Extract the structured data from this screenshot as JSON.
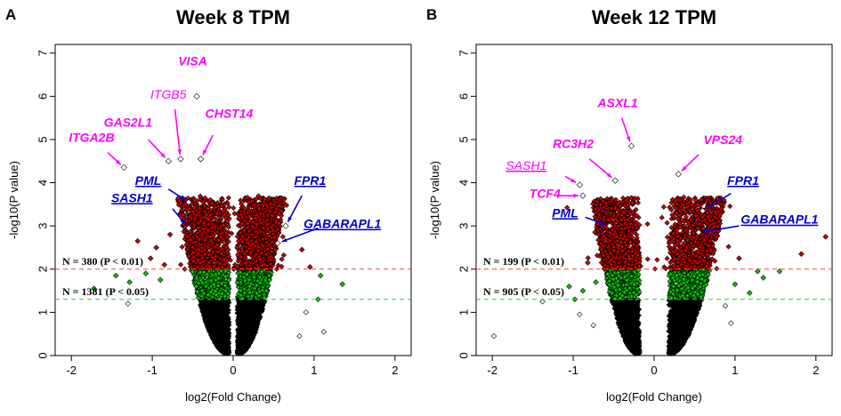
{
  "chart_data": [
    {
      "type": "scatter",
      "panel_letter": "A",
      "title": "Week 8 TPM",
      "xlabel": "log2(Fold Change)",
      "ylabel": "-log10(P value)",
      "xlim": [
        -2.2,
        2.2
      ],
      "ylim": [
        0,
        7.2
      ],
      "xticks": [
        -2,
        -1,
        0,
        1,
        2
      ],
      "yticks": [
        0,
        1,
        2,
        3,
        4,
        5,
        6,
        7
      ],
      "thresholds": [
        {
          "y": 2.0,
          "color": "#ff4040",
          "label": "N = 380 (P < 0.01)"
        },
        {
          "y": 1.3,
          "color": "#33cc33",
          "label": "N = 1381 (P < 0.05)"
        }
      ],
      "colors": {
        "high": "#cc0000",
        "mid": "#00cc00",
        "low": "#000000",
        "magenta": "#ff00ff",
        "blue": "#0000cc"
      },
      "cloud": {
        "x_gap": [
          -0.05,
          0.05
        ],
        "left_spread": 0.55,
        "right_spread": 0.5,
        "top_x": [
          -0.32,
          0.28
        ]
      },
      "outliers": [
        {
          "x": -1.72,
          "y": 1.55
        },
        {
          "x": -1.45,
          "y": 1.85
        },
        {
          "x": -1.28,
          "y": 1.7
        },
        {
          "x": -1.08,
          "y": 1.9
        },
        {
          "x": -0.95,
          "y": 2.5
        },
        {
          "x": -0.85,
          "y": 2.1
        },
        {
          "x": -1.02,
          "y": 2.25
        },
        {
          "x": -0.78,
          "y": 2.8
        },
        {
          "x": -1.18,
          "y": 2.65
        },
        {
          "x": -0.9,
          "y": 1.75
        },
        {
          "x": 0.95,
          "y": 2.05
        },
        {
          "x": 1.08,
          "y": 1.85
        },
        {
          "x": 1.35,
          "y": 1.65
        },
        {
          "x": 0.85,
          "y": 2.45
        },
        {
          "x": 1.12,
          "y": 0.55
        },
        {
          "x": 0.82,
          "y": 0.45
        },
        {
          "x": 1.05,
          "y": 1.3
        },
        {
          "x": -1.3,
          "y": 1.2
        },
        {
          "x": 0.9,
          "y": 1.0
        }
      ],
      "genes": [
        {
          "name": "VISA",
          "x": -0.45,
          "y": 6.0,
          "color": "magenta",
          "lx": -0.5,
          "ly": 6.72,
          "underline": false,
          "thin": false
        },
        {
          "name": "ITGB5",
          "x": -0.65,
          "y": 4.55,
          "color": "magenta",
          "lx": -0.8,
          "ly": 5.95,
          "underline": false,
          "thin": true,
          "ax": -0.72,
          "ay": 5.7
        },
        {
          "name": "GAS2L1",
          "x": -0.8,
          "y": 4.5,
          "color": "magenta",
          "lx": -1.3,
          "ly": 5.3,
          "underline": false,
          "thin": false,
          "ax": -1.05,
          "ay": 5.0
        },
        {
          "name": "CHST14",
          "x": -0.4,
          "y": 4.55,
          "color": "magenta",
          "lx": -0.05,
          "ly": 5.5,
          "underline": false,
          "thin": false,
          "ax": -0.25,
          "ay": 5.1
        },
        {
          "name": "ITGA2B",
          "x": -1.35,
          "y": 4.35,
          "color": "magenta",
          "lx": -1.75,
          "ly": 4.95,
          "underline": false,
          "thin": false,
          "ax": -1.55,
          "ay": 4.7
        },
        {
          "name": "PML",
          "x": -0.55,
          "y": 3.55,
          "color": "blue",
          "lx": -1.05,
          "ly": 3.95,
          "underline": true,
          "thin": false,
          "ax": -0.8,
          "ay": 3.85
        },
        {
          "name": "SASH1",
          "x": -0.55,
          "y": 2.95,
          "color": "blue",
          "lx": -1.25,
          "ly": 3.55,
          "underline": true,
          "thin": false,
          "ax": -0.75,
          "ay": 3.4
        },
        {
          "name": "FPR1",
          "x": 0.65,
          "y": 3.0,
          "color": "blue",
          "lx": 0.95,
          "ly": 3.95,
          "underline": true,
          "thin": false,
          "ax": 0.85,
          "ay": 3.7
        },
        {
          "name": "GABARAPL1",
          "x": 0.55,
          "y": 2.6,
          "color": "blue",
          "lx": 1.35,
          "ly": 2.95,
          "underline": true,
          "thin": false,
          "ax": 1.05,
          "ay": 2.95
        }
      ]
    },
    {
      "type": "scatter",
      "panel_letter": "B",
      "title": "Week 12 TPM",
      "xlabel": "log2(Fold Change)",
      "ylabel": "-log10(P value)",
      "xlim": [
        -2.2,
        2.2
      ],
      "ylim": [
        0,
        7.2
      ],
      "xticks": [
        -2,
        -1,
        0,
        1,
        2
      ],
      "yticks": [
        0,
        1,
        2,
        3,
        4,
        5,
        6,
        7
      ],
      "thresholds": [
        {
          "y": 2.0,
          "color": "#ff4040",
          "label": "N = 199 (P < 0.01)"
        },
        {
          "y": 1.3,
          "color": "#33cc33",
          "label": "N = 905 (P < 0.05)"
        }
      ],
      "colors": {
        "high": "#cc0000",
        "mid": "#00cc00",
        "low": "#000000",
        "magenta": "#ff00ff",
        "blue": "#0000cc"
      },
      "cloud": {
        "x_gap": [
          -0.18,
          0.18
        ],
        "left_spread": 0.5,
        "right_spread": 0.6,
        "top_x": [
          -0.45,
          0.45
        ]
      },
      "outliers": [
        {
          "x": -1.98,
          "y": 0.45
        },
        {
          "x": -1.38,
          "y": 1.25
        },
        {
          "x": -0.98,
          "y": 1.3
        },
        {
          "x": -0.88,
          "y": 1.5
        },
        {
          "x": -0.92,
          "y": 0.95
        },
        {
          "x": -0.72,
          "y": 1.7
        },
        {
          "x": -1.05,
          "y": 1.6
        },
        {
          "x": -0.82,
          "y": 2.15
        },
        {
          "x": -0.75,
          "y": 0.7
        },
        {
          "x": 1.0,
          "y": 1.65
        },
        {
          "x": 1.18,
          "y": 1.45
        },
        {
          "x": 1.35,
          "y": 1.8
        },
        {
          "x": 1.55,
          "y": 1.95
        },
        {
          "x": 1.82,
          "y": 2.35
        },
        {
          "x": 1.28,
          "y": 1.95
        },
        {
          "x": 0.95,
          "y": 0.75
        },
        {
          "x": 2.12,
          "y": 2.75
        },
        {
          "x": 0.88,
          "y": 1.15
        },
        {
          "x": 1.05,
          "y": 2.25
        }
      ],
      "genes": [
        {
          "name": "ASXL1",
          "x": -0.28,
          "y": 4.85,
          "color": "magenta",
          "lx": -0.45,
          "ly": 5.75,
          "underline": false,
          "thin": false,
          "ax": -0.4,
          "ay": 5.5
        },
        {
          "name": "VPS24",
          "x": 0.3,
          "y": 4.2,
          "color": "magenta",
          "lx": 0.85,
          "ly": 4.9,
          "underline": false,
          "thin": false,
          "ax": 0.55,
          "ay": 4.65
        },
        {
          "name": "RC3H2",
          "x": -0.48,
          "y": 4.05,
          "color": "magenta",
          "lx": -1.0,
          "ly": 4.8,
          "underline": false,
          "thin": false,
          "ax": -0.8,
          "ay": 4.55
        },
        {
          "name": "SASH1",
          "x": -0.92,
          "y": 3.95,
          "color": "magenta",
          "lx": -1.58,
          "ly": 4.3,
          "underline": true,
          "thin": true,
          "ax": -1.1,
          "ay": 4.15
        },
        {
          "name": "TCF4",
          "x": -0.88,
          "y": 3.7,
          "color": "magenta",
          "lx": -1.35,
          "ly": 3.65,
          "underline": false,
          "thin": false,
          "ax": -1.2,
          "ay": 3.7
        },
        {
          "name": "PML",
          "x": -0.55,
          "y": 3.0,
          "color": "blue",
          "lx": -1.1,
          "ly": 3.2,
          "underline": true,
          "thin": false,
          "ax": -0.85,
          "ay": 3.2
        },
        {
          "name": "FPR1",
          "x": 0.6,
          "y": 3.35,
          "color": "blue",
          "lx": 1.1,
          "ly": 3.95,
          "underline": true,
          "thin": false,
          "ax": 0.95,
          "ay": 3.75
        },
        {
          "name": "GABARAPL1",
          "x": 0.55,
          "y": 2.85,
          "color": "blue",
          "lx": 1.55,
          "ly": 3.05,
          "underline": true,
          "thin": false,
          "ax": 1.05,
          "ay": 3.0
        }
      ]
    }
  ]
}
